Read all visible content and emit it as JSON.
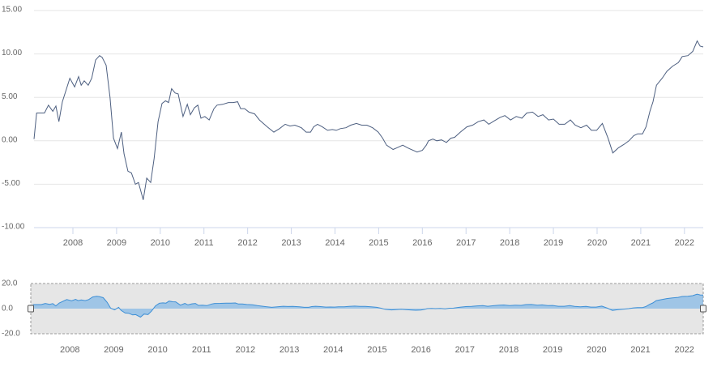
{
  "chart_data": {
    "type": "line",
    "color": "#4d5f80",
    "grid": true,
    "x": [
      2007.11,
      2007.17,
      2007.35,
      2007.44,
      2007.54,
      2007.61,
      2007.68,
      2007.76,
      2007.93,
      2008.04,
      2008.13,
      2008.19,
      2008.26,
      2008.35,
      2008.43,
      2008.52,
      2008.61,
      2008.67,
      2008.76,
      2008.85,
      2008.93,
      2009.02,
      2009.11,
      2009.17,
      2009.26,
      2009.34,
      2009.43,
      2009.5,
      2009.61,
      2009.69,
      2009.78,
      2009.86,
      2009.95,
      2010.04,
      2010.12,
      2010.19,
      2010.26,
      2010.34,
      2010.41,
      2010.52,
      2010.62,
      2010.69,
      2010.78,
      2010.86,
      2010.93,
      2011.02,
      2011.12,
      2011.23,
      2011.3,
      2011.43,
      2011.56,
      2011.67,
      2011.77,
      2011.84,
      2011.93,
      2012.03,
      2012.16,
      2012.27,
      2012.45,
      2012.6,
      2012.73,
      2012.86,
      2012.97,
      2013.08,
      2013.23,
      2013.34,
      2013.44,
      2013.51,
      2013.6,
      2013.71,
      2013.83,
      2013.94,
      2014.03,
      2014.12,
      2014.25,
      2014.36,
      2014.49,
      2014.61,
      2014.73,
      2014.86,
      2014.99,
      2015.09,
      2015.18,
      2015.33,
      2015.42,
      2015.55,
      2015.66,
      2015.79,
      2015.88,
      2016.0,
      2016.09,
      2016.14,
      2016.24,
      2016.33,
      2016.44,
      2016.55,
      2016.65,
      2016.74,
      2016.87,
      2017.02,
      2017.15,
      2017.28,
      2017.41,
      2017.52,
      2017.65,
      2017.78,
      2017.89,
      2018.02,
      2018.15,
      2018.28,
      2018.39,
      2018.52,
      2018.65,
      2018.76,
      2018.89,
      2019.0,
      2019.13,
      2019.26,
      2019.39,
      2019.5,
      2019.63,
      2019.76,
      2019.87,
      2019.99,
      2020.12,
      2020.25,
      2020.36,
      2020.49,
      2020.62,
      2020.73,
      2020.84,
      2020.93,
      2021.04,
      2021.12,
      2021.21,
      2021.28,
      2021.36,
      2021.49,
      2021.6,
      2021.73,
      2021.86,
      2021.95,
      2022.08,
      2022.19,
      2022.29,
      2022.36,
      2022.43
    ],
    "values": [
      0.2,
      3.2,
      3.2,
      4.1,
      3.4,
      4.0,
      2.2,
      4.5,
      7.2,
      6.2,
      7.4,
      6.4,
      6.9,
      6.4,
      7.2,
      9.3,
      9.8,
      9.6,
      8.7,
      5.0,
      0.3,
      -0.9,
      1.0,
      -1.5,
      -3.5,
      -3.7,
      -5.0,
      -4.8,
      -6.8,
      -4.3,
      -4.8,
      -2.0,
      2.2,
      4.3,
      4.6,
      4.4,
      6.0,
      5.5,
      5.4,
      2.8,
      4.2,
      3.0,
      3.8,
      4.1,
      2.6,
      2.8,
      2.4,
      3.7,
      4.1,
      4.2,
      4.4,
      4.4,
      4.5,
      3.7,
      3.7,
      3.3,
      3.1,
      2.4,
      1.6,
      1.0,
      1.4,
      1.9,
      1.7,
      1.8,
      1.5,
      1.0,
      1.0,
      1.6,
      1.9,
      1.6,
      1.2,
      1.3,
      1.2,
      1.4,
      1.5,
      1.8,
      2.0,
      1.8,
      1.8,
      1.5,
      1.0,
      0.3,
      -0.5,
      -1.0,
      -0.8,
      -0.5,
      -0.8,
      -1.1,
      -1.3,
      -1.1,
      -0.5,
      0.0,
      0.2,
      0.0,
      0.1,
      -0.2,
      0.3,
      0.4,
      1.0,
      1.6,
      1.8,
      2.2,
      2.4,
      1.9,
      2.3,
      2.7,
      2.9,
      2.4,
      2.8,
      2.6,
      3.2,
      3.3,
      2.8,
      3.0,
      2.4,
      2.5,
      1.9,
      1.9,
      2.4,
      1.8,
      1.5,
      1.8,
      1.2,
      1.2,
      2.0,
      0.3,
      -1.4,
      -0.8,
      -0.4,
      0.0,
      0.6,
      0.8,
      0.8,
      1.6,
      3.4,
      4.5,
      6.4,
      7.2,
      8.0,
      8.6,
      9.0,
      9.7,
      9.8,
      10.3,
      11.5,
      10.9,
      10.8
    ],
    "xlim": [
      2007.11,
      2022.43
    ],
    "xticks": [
      2008,
      2009,
      2010,
      2011,
      2012,
      2013,
      2014,
      2015,
      2016,
      2017,
      2018,
      2019,
      2020,
      2021,
      2022
    ],
    "ylim": [
      -10,
      15
    ],
    "yticks": [
      {
        "value": -10,
        "label": "-10.00"
      },
      {
        "value": -5,
        "label": "-5.00"
      },
      {
        "value": 0,
        "label": "0.00"
      },
      {
        "value": 5,
        "label": "5.00"
      },
      {
        "value": 10,
        "label": "10.00"
      },
      {
        "value": 15,
        "label": "15.00"
      }
    ],
    "navigator": {
      "color": "#3d8fd6",
      "ylim": [
        -20,
        20
      ],
      "yticks": [
        {
          "value": -20,
          "label": "-20.0"
        },
        {
          "value": 0,
          "label": "0.0"
        },
        {
          "value": 20,
          "label": "20.0"
        }
      ]
    }
  }
}
